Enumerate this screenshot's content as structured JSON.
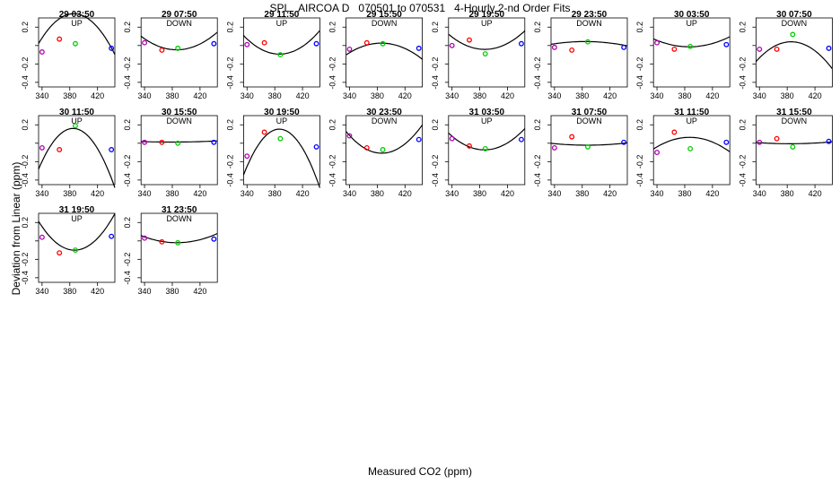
{
  "header": {
    "title": "SPL   AIRCOA D   070501 to 070531   4-Hourly 2-nd Order Fits",
    "xlabel": "Measured CO2 (ppm)",
    "ylabel": "Deviation from Linear (ppm)"
  },
  "colors": {
    "point1": "#b000b0",
    "point2": "#ff0000",
    "point3": "#00cc00",
    "point4": "#0000ff",
    "curve": "#000000"
  },
  "chart_data": {
    "type": "scatter",
    "xticks": [
      340,
      380,
      420
    ],
    "yticks": [
      -0.4,
      -0.2,
      0.0,
      0.2
    ],
    "ytick_labels": [
      "-0.4",
      "-0.2",
      "",
      "0.2"
    ],
    "xlim": [
      335,
      445
    ],
    "ylim": [
      -0.45,
      0.3
    ],
    "x": [
      340,
      365,
      388,
      440
    ],
    "panels": [
      {
        "title": "29 03:50",
        "mode": "UP",
        "y": [
          -0.07,
          0.07,
          0.02,
          -0.03
        ],
        "fit": [
          -0.000126,
          0.0972,
          -18.4
        ]
      },
      {
        "title": "29 07:50",
        "mode": "DOWN",
        "y": [
          0.03,
          -0.05,
          -0.03,
          0.02
        ],
        "fit": [
          5.59e-05,
          -0.0432,
          8.3
        ]
      },
      {
        "title": "29 11:50",
        "mode": "UP",
        "y": [
          0.01,
          0.03,
          -0.1,
          0.02
        ],
        "fit": [
          7.55e-05,
          -0.0584,
          11.2
        ]
      },
      {
        "title": "29 15:50",
        "mode": "DOWN",
        "y": [
          -0.04,
          0.03,
          0.02,
          -0.03
        ],
        "fit": [
          -4.99e-05,
          0.0385,
          -7.4
        ]
      },
      {
        "title": "29 19:50",
        "mode": "UP",
        "y": [
          0.0,
          0.06,
          -0.09,
          0.02
        ],
        "fit": [
          6.03e-05,
          -0.0467,
          9.0
        ]
      },
      {
        "title": "29 23:50",
        "mode": "DOWN",
        "y": [
          -0.02,
          -0.05,
          0.04,
          -0.02
        ],
        "fit": [
          -1.25e-05,
          0.0096,
          -1.8
        ]
      },
      {
        "title": "30 03:50",
        "mode": "UP",
        "y": [
          0.03,
          -0.04,
          -0.01,
          0.01
        ],
        "fit": [
          3.22e-05,
          -0.0249,
          4.8
        ]
      },
      {
        "title": "30 07:50",
        "mode": "DOWN",
        "y": [
          -0.04,
          -0.04,
          0.12,
          -0.03
        ],
        "fit": [
          -8.36e-05,
          0.0645,
          -12.4
        ]
      },
      {
        "title": "30 11:50",
        "mode": "UP",
        "y": [
          -0.05,
          -0.07,
          0.19,
          -0.07
        ],
        "fit": [
          -0.000178,
          0.137,
          -26.2
        ]
      },
      {
        "title": "30 15:50",
        "mode": "DOWN",
        "y": [
          0.01,
          0.01,
          0.0,
          0.01
        ],
        "fit": [
          2.9e-06,
          -0.0022,
          0.43
        ]
      },
      {
        "title": "30 19:50",
        "mode": "UP",
        "y": [
          -0.14,
          0.12,
          0.05,
          -0.04
        ],
        "fit": [
          -0.000187,
          0.1446,
          -27.8
        ]
      },
      {
        "title": "30 23:50",
        "mode": "DOWN",
        "y": [
          0.08,
          -0.05,
          -0.07,
          0.04
        ],
        "fit": [
          8.98e-05,
          -0.0694,
          13.3
        ]
      },
      {
        "title": "31 03:50",
        "mode": "UP",
        "y": [
          0.05,
          -0.03,
          -0.06,
          0.04
        ],
        "fit": [
          6.8e-05,
          -0.0526,
          10.1
        ]
      },
      {
        "title": "31 07:50",
        "mode": "DOWN",
        "y": [
          -0.05,
          0.07,
          -0.04,
          0.01
        ],
        "fit": [
          7.5e-06,
          -0.0058,
          1.1
        ]
      },
      {
        "title": "31 11:50",
        "mode": "UP",
        "y": [
          -0.1,
          0.12,
          -0.06,
          0.01
        ],
        "fit": [
          -4.69e-05,
          0.0363,
          -6.96
        ]
      },
      {
        "title": "31 15:50",
        "mode": "DOWN",
        "y": [
          0.01,
          0.05,
          -0.04,
          0.02
        ],
        "fit": [
          5.6e-06,
          -0.0043,
          0.82
        ]
      },
      {
        "title": "31 19:50",
        "mode": "UP",
        "y": [
          0.04,
          -0.13,
          -0.1,
          0.05
        ],
        "fit": [
          0.000117,
          -0.0905,
          17.4
        ]
      },
      {
        "title": "31 23:50",
        "mode": "DOWN",
        "y": [
          0.03,
          -0.01,
          -0.02,
          0.02
        ],
        "fit": [
          2.91e-05,
          -0.0225,
          4.33
        ]
      }
    ]
  }
}
